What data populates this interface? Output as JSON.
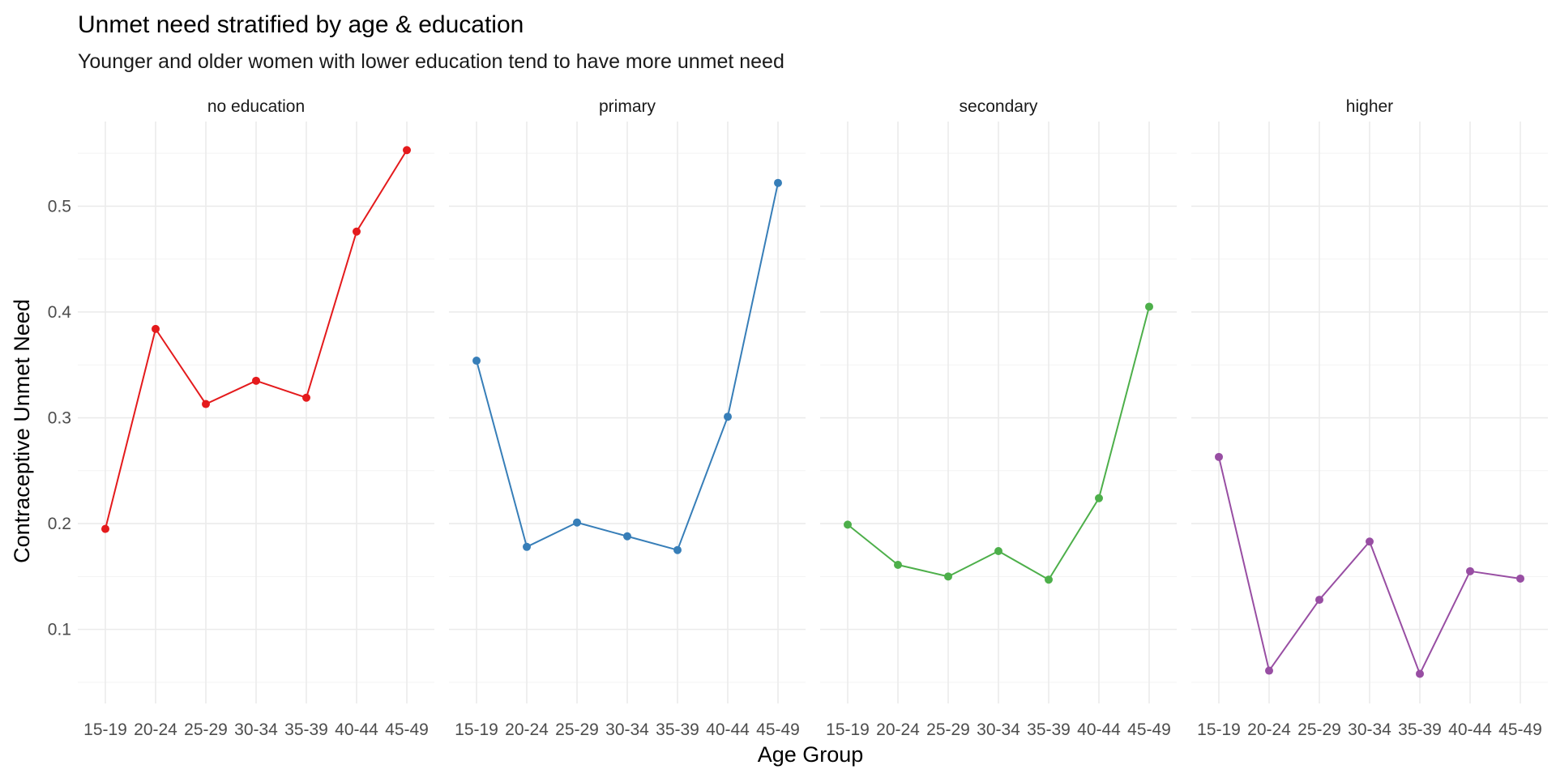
{
  "chart_data": {
    "type": "line",
    "title": "Unmet need stratified by age & education",
    "subtitle": "Younger and older women with lower education tend to have more unmet need",
    "xlabel": "Age Group",
    "ylabel": "Contraceptive Unmet Need",
    "categories": [
      "15-19",
      "20-24",
      "25-29",
      "30-34",
      "35-39",
      "40-44",
      "45-49"
    ],
    "ylim": [
      0.03,
      0.58
    ],
    "yticks": [
      0.1,
      0.2,
      0.3,
      0.4,
      0.5
    ],
    "yticks_labels": [
      "0.1",
      "0.2",
      "0.3",
      "0.4",
      "0.5"
    ],
    "grid": true,
    "legend": "none",
    "panels": [
      {
        "name": "no education",
        "color": "#e41a1c",
        "values": [
          0.195,
          0.384,
          0.313,
          0.335,
          0.319,
          0.476,
          0.553
        ]
      },
      {
        "name": "primary",
        "color": "#377eb8",
        "values": [
          0.354,
          0.178,
          0.201,
          0.188,
          0.175,
          0.301,
          0.522
        ]
      },
      {
        "name": "secondary",
        "color": "#4daf4a",
        "values": [
          0.199,
          0.161,
          0.15,
          0.174,
          0.147,
          0.224,
          0.405
        ]
      },
      {
        "name": "higher",
        "color": "#984ea3",
        "values": [
          0.263,
          0.061,
          0.128,
          0.183,
          0.058,
          0.155,
          0.148
        ]
      }
    ]
  }
}
